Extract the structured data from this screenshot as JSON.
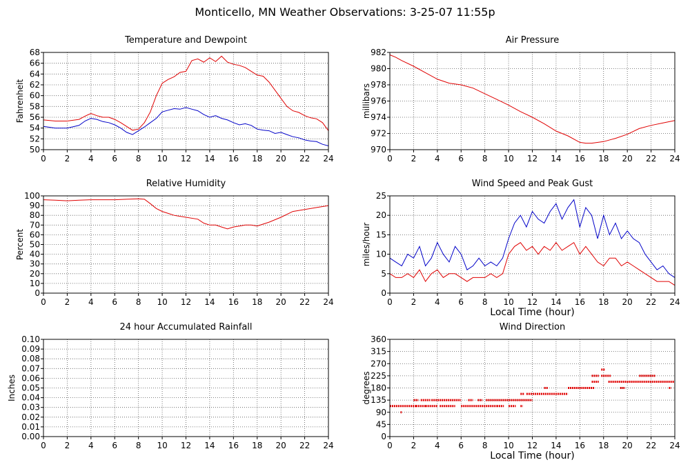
{
  "page": {
    "title": "Monticello, MN Weather Observations: 3-25-07 11:55p"
  },
  "chart_data": [
    {
      "id": "temperature",
      "type": "line",
      "title": "Temperature and Dewpoint",
      "xlabel": "",
      "ylabel": "Fahrenheit",
      "xlim": [
        0,
        24
      ],
      "ylim": [
        50,
        68
      ],
      "xticks": [
        0,
        2,
        4,
        6,
        8,
        10,
        12,
        14,
        16,
        18,
        20,
        22,
        24
      ],
      "yticks": [
        50,
        52,
        54,
        56,
        58,
        60,
        62,
        64,
        66,
        68
      ],
      "grid": true,
      "series": [
        {
          "color": "#e00000",
          "style": "line",
          "x": [
            0,
            1,
            2,
            3,
            3.5,
            4,
            4.5,
            5,
            5.5,
            6,
            6.5,
            7,
            7.5,
            8,
            8.5,
            9,
            9.5,
            10,
            10.5,
            11,
            11.5,
            12,
            12.5,
            13,
            13.5,
            14,
            14.5,
            15,
            15.5,
            16,
            16.5,
            17,
            17.5,
            18,
            18.5,
            19,
            19.5,
            20,
            20.5,
            21,
            21.5,
            22,
            22.5,
            23,
            23.5,
            24
          ],
          "y": [
            55.5,
            55.3,
            55.3,
            55.6,
            56.2,
            56.7,
            56.3,
            56,
            56,
            55.6,
            55,
            54.3,
            53.6,
            53.8,
            55,
            57,
            60,
            62.3,
            63,
            63.5,
            64.3,
            64.5,
            66.5,
            66.8,
            66.2,
            67,
            66.3,
            67.3,
            66.2,
            65.8,
            65.6,
            65.2,
            64.5,
            63.8,
            63.6,
            62.5,
            61,
            59.5,
            58,
            57.2,
            56.9,
            56.3,
            55.9,
            55.7,
            55,
            53.5
          ]
        },
        {
          "color": "#0000c8",
          "style": "line",
          "x": [
            0,
            1,
            2,
            3,
            3.5,
            4,
            4.5,
            5,
            5.5,
            6,
            6.5,
            7,
            7.5,
            8,
            8.5,
            9,
            9.5,
            10,
            10.5,
            11,
            11.5,
            12,
            12.5,
            13,
            13.5,
            14,
            14.5,
            15,
            15.5,
            16,
            16.5,
            17,
            17.5,
            18,
            18.5,
            19,
            19.5,
            20,
            20.5,
            21,
            21.5,
            22,
            22.5,
            23,
            23.5,
            24
          ],
          "y": [
            54.3,
            54,
            54,
            54.5,
            55.3,
            55.8,
            55.6,
            55.2,
            55,
            54.6,
            54,
            53.2,
            52.8,
            53.5,
            54.2,
            55,
            55.8,
            57,
            57.3,
            57.6,
            57.5,
            57.8,
            57.5,
            57.2,
            56.5,
            56,
            56.3,
            55.8,
            55.5,
            55,
            54.6,
            54.8,
            54.5,
            53.8,
            53.6,
            53.5,
            53,
            53.2,
            52.8,
            52.4,
            52.2,
            51.8,
            51.6,
            51.5,
            51,
            50.7
          ]
        }
      ]
    },
    {
      "id": "pressure",
      "type": "line",
      "title": "Air Pressure",
      "xlabel": "",
      "ylabel": "millibars",
      "xlim": [
        0,
        24
      ],
      "ylim": [
        970,
        982
      ],
      "xticks": [
        0,
        2,
        4,
        6,
        8,
        10,
        12,
        14,
        16,
        18,
        20,
        22,
        24
      ],
      "yticks": [
        970,
        972,
        974,
        976,
        978,
        980,
        982
      ],
      "grid": true,
      "series": [
        {
          "color": "#e00000",
          "style": "line",
          "x": [
            0,
            0.5,
            1,
            2,
            3,
            4,
            5,
            6,
            7,
            8,
            9,
            10,
            11,
            12,
            13,
            14,
            15,
            16,
            16.5,
            17,
            18,
            19,
            20,
            21,
            22,
            23,
            24
          ],
          "y": [
            981.7,
            981.4,
            981,
            980.3,
            979.5,
            978.7,
            978.2,
            978,
            977.6,
            976.9,
            976.2,
            975.5,
            974.7,
            974,
            973.2,
            972.3,
            971.7,
            970.9,
            970.8,
            970.8,
            971,
            971.4,
            971.9,
            972.6,
            973,
            973.3,
            973.6
          ]
        }
      ]
    },
    {
      "id": "humidity",
      "type": "line",
      "title": "Relative Humidity",
      "xlabel": "",
      "ylabel": "Percent",
      "xlim": [
        0,
        24
      ],
      "ylim": [
        0,
        100
      ],
      "xticks": [
        0,
        2,
        4,
        6,
        8,
        10,
        12,
        14,
        16,
        18,
        20,
        22,
        24
      ],
      "yticks": [
        0,
        10,
        20,
        30,
        40,
        50,
        60,
        70,
        80,
        90,
        100
      ],
      "grid": true,
      "series": [
        {
          "color": "#e00000",
          "style": "line",
          "x": [
            0,
            1,
            2,
            3,
            4,
            5,
            6,
            7,
            8,
            8.5,
            9,
            9.5,
            10,
            10.5,
            11,
            12,
            13,
            13.5,
            14,
            14.5,
            15,
            15.5,
            16,
            16.5,
            17,
            17.5,
            18,
            18.5,
            19,
            20,
            21,
            22,
            23,
            24
          ],
          "y": [
            96,
            95.5,
            95,
            95.5,
            96,
            96,
            96,
            96.5,
            97,
            96.5,
            92,
            87,
            84,
            82,
            80,
            78,
            76,
            72,
            70,
            70,
            68,
            66,
            68,
            69,
            70,
            70,
            69,
            71,
            73,
            78,
            84,
            86,
            88,
            90
          ]
        }
      ]
    },
    {
      "id": "wind-speed",
      "type": "line",
      "title": "Wind Speed and Peak Gust",
      "xlabel": "Local Time (hour)",
      "ylabel": "miles/hour",
      "xlim": [
        0,
        24
      ],
      "ylim": [
        0,
        25
      ],
      "xticks": [
        0,
        2,
        4,
        6,
        8,
        10,
        12,
        14,
        16,
        18,
        20,
        22,
        24
      ],
      "yticks": [
        0,
        5,
        10,
        15,
        20,
        25
      ],
      "grid": true,
      "series": [
        {
          "color": "#0000c8",
          "style": "line",
          "x": [
            0,
            0.5,
            1,
            1.5,
            2,
            2.5,
            3,
            3.5,
            4,
            4.5,
            5,
            5.5,
            6,
            6.5,
            7,
            7.5,
            8,
            8.5,
            9,
            9.5,
            10,
            10.5,
            11,
            11.5,
            12,
            12.5,
            13,
            13.5,
            14,
            14.5,
            15,
            15.5,
            16,
            16.5,
            17,
            17.5,
            18,
            18.5,
            19,
            19.5,
            20,
            20.5,
            21,
            21.5,
            22,
            22.5,
            23,
            23.5,
            24
          ],
          "y": [
            9,
            8,
            7,
            10,
            9,
            12,
            7,
            9,
            13,
            10,
            8,
            12,
            10,
            6,
            7,
            9,
            7,
            8,
            7,
            9,
            14,
            18,
            20,
            17,
            21,
            19,
            18,
            21,
            23,
            19,
            22,
            24,
            17,
            22,
            20,
            14,
            20,
            15,
            18,
            14,
            16,
            14,
            13,
            10,
            8,
            6,
            7,
            5,
            4
          ]
        },
        {
          "color": "#e00000",
          "style": "line",
          "x": [
            0,
            0.5,
            1,
            1.5,
            2,
            2.5,
            3,
            3.5,
            4,
            4.5,
            5,
            5.5,
            6,
            6.5,
            7,
            7.5,
            8,
            8.5,
            9,
            9.5,
            10,
            10.5,
            11,
            11.5,
            12,
            12.5,
            13,
            13.5,
            14,
            14.5,
            15,
            15.5,
            16,
            16.5,
            17,
            17.5,
            18,
            18.5,
            19,
            19.5,
            20,
            20.5,
            21,
            21.5,
            22,
            22.5,
            23,
            23.5,
            24
          ],
          "y": [
            5,
            4,
            4,
            5,
            4,
            6,
            3,
            5,
            6,
            4,
            5,
            5,
            4,
            3,
            4,
            4,
            4,
            5,
            4,
            5,
            10,
            12,
            13,
            11,
            12,
            10,
            12,
            11,
            13,
            11,
            12,
            13,
            10,
            12,
            10,
            8,
            7,
            9,
            9,
            7,
            8,
            7,
            6,
            5,
            4,
            3,
            3,
            3,
            2
          ]
        }
      ]
    },
    {
      "id": "rainfall",
      "type": "line",
      "title": "24 hour Accumulated Rainfall",
      "xlabel": "",
      "ylabel": "Inches",
      "xlim": [
        0,
        24
      ],
      "ylim": [
        0,
        0.1
      ],
      "xticks": [
        0,
        2,
        4,
        6,
        8,
        10,
        12,
        14,
        16,
        18,
        20,
        22,
        24
      ],
      "yticks": [
        "0.00",
        "0.01",
        "0.02",
        "0.03",
        "0.04",
        "0.05",
        "0.06",
        "0.07",
        "0.08",
        "0.09",
        "0.10"
      ],
      "grid": true,
      "series": [
        {
          "color": "#e00000",
          "style": "line",
          "x": [
            0,
            24
          ],
          "y": [
            0,
            0
          ]
        }
      ]
    },
    {
      "id": "wind-direction",
      "type": "scatter",
      "title": "Wind Direction",
      "xlabel": "Local Time (hour)",
      "ylabel": "degrees",
      "xlim": [
        0,
        24
      ],
      "ylim": [
        0,
        360
      ],
      "xticks": [
        0,
        2,
        4,
        6,
        8,
        10,
        12,
        14,
        16,
        18,
        20,
        22,
        24
      ],
      "yticks": [
        0,
        45,
        90,
        135,
        180,
        225,
        270,
        315,
        360
      ],
      "grid": true,
      "series": [
        {
          "color": "#e00000",
          "style": "dots",
          "segments": [
            {
              "x0": 0,
              "x1": 2.2,
              "y": 113
            },
            {
              "x0": 0.9,
              "x1": 1.0,
              "y": 90
            },
            {
              "x0": 2.0,
              "x1": 2.4,
              "y": 135
            },
            {
              "x0": 2.2,
              "x1": 3.0,
              "y": 113
            },
            {
              "x0": 2.6,
              "x1": 3.4,
              "y": 135
            },
            {
              "x0": 3.0,
              "x1": 4.0,
              "y": 113
            },
            {
              "x0": 3.5,
              "x1": 6.0,
              "y": 135
            },
            {
              "x0": 4.2,
              "x1": 5.5,
              "y": 113
            },
            {
              "x0": 6.0,
              "x1": 9.0,
              "y": 113
            },
            {
              "x0": 6.6,
              "x1": 7.0,
              "y": 135
            },
            {
              "x0": 7.4,
              "x1": 7.8,
              "y": 135
            },
            {
              "x0": 8.1,
              "x1": 12.0,
              "y": 135
            },
            {
              "x0": 9.0,
              "x1": 9.6,
              "y": 113
            },
            {
              "x0": 10.0,
              "x1": 10.6,
              "y": 113
            },
            {
              "x0": 11.0,
              "x1": 11.2,
              "y": 113
            },
            {
              "x0": 11.0,
              "x1": 11.3,
              "y": 158
            },
            {
              "x0": 11.5,
              "x1": 15.0,
              "y": 158
            },
            {
              "x0": 13.0,
              "x1": 13.3,
              "y": 180
            },
            {
              "x0": 15.0,
              "x1": 17.2,
              "y": 180
            },
            {
              "x0": 17.0,
              "x1": 17.6,
              "y": 225
            },
            {
              "x0": 17.0,
              "x1": 17.6,
              "y": 203
            },
            {
              "x0": 17.8,
              "x1": 18.1,
              "y": 248
            },
            {
              "x0": 17.8,
              "x1": 18.6,
              "y": 225
            },
            {
              "x0": 18.4,
              "x1": 24.0,
              "y": 203
            },
            {
              "x0": 19.4,
              "x1": 19.8,
              "y": 180
            },
            {
              "x0": 21.0,
              "x1": 22.4,
              "y": 225
            },
            {
              "x0": 23.5,
              "x1": 23.7,
              "y": 180
            }
          ]
        }
      ]
    }
  ]
}
